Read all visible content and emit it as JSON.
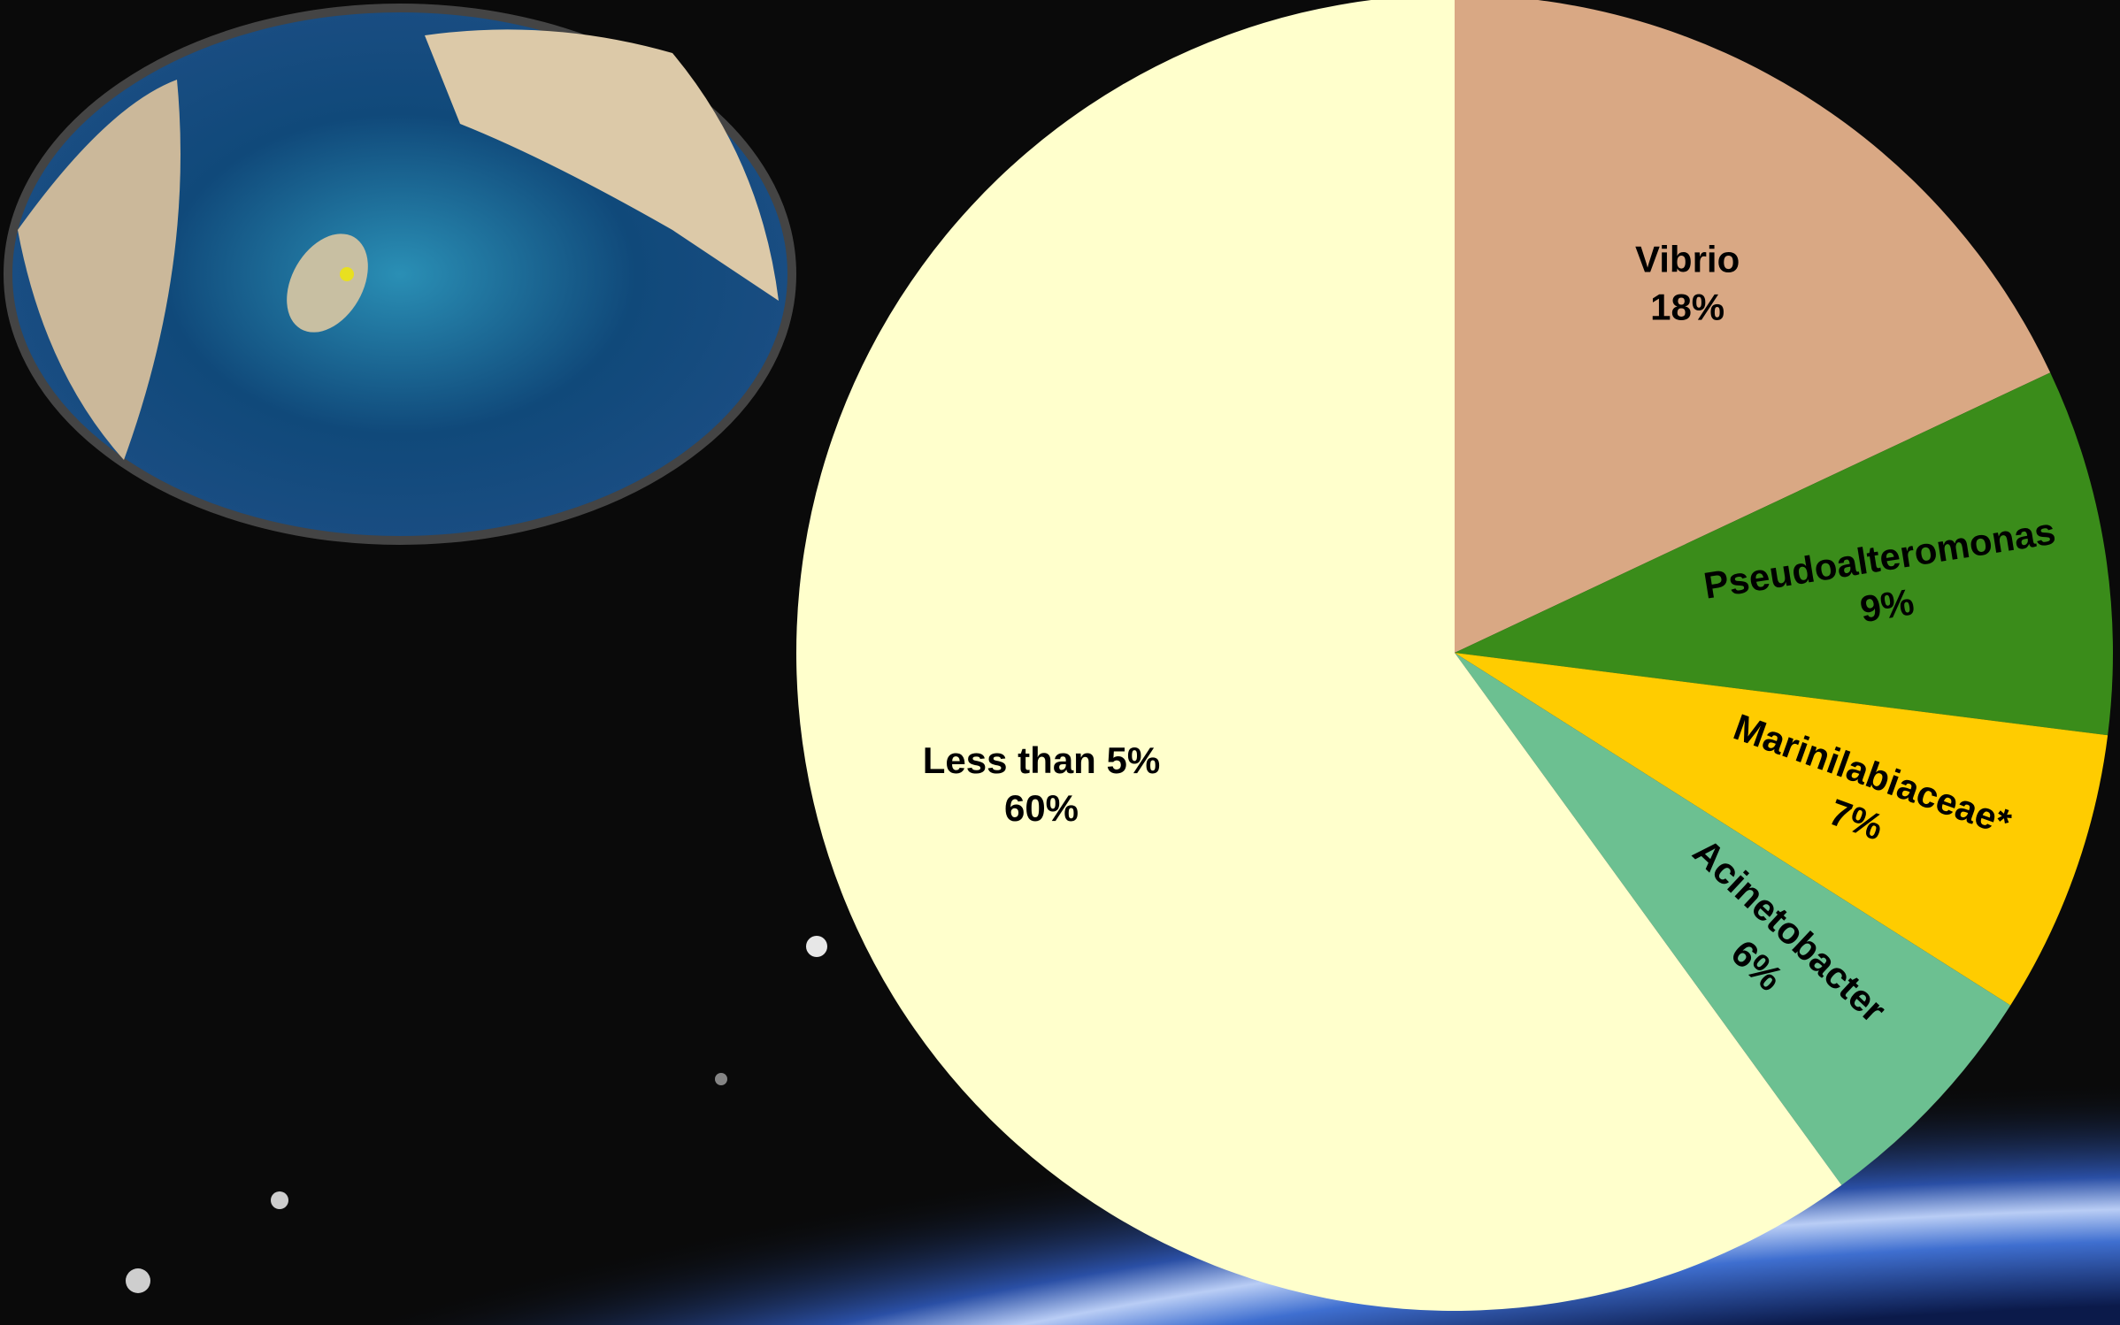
{
  "chart_data": {
    "type": "pie",
    "categories": [
      "Vibrio",
      "Pseudoalteromonas",
      "Marinilabiaceae*",
      "Acinetobacter",
      "Less than 5%"
    ],
    "values": [
      18,
      9,
      7,
      6,
      60
    ],
    "value_labels": [
      "18%",
      "9%",
      "7%",
      "6%",
      "60%"
    ],
    "colors": [
      "#d9a884",
      "#3a8c1a",
      "#ffcc00",
      "#6cc091",
      "#ffffcc"
    ]
  }
}
